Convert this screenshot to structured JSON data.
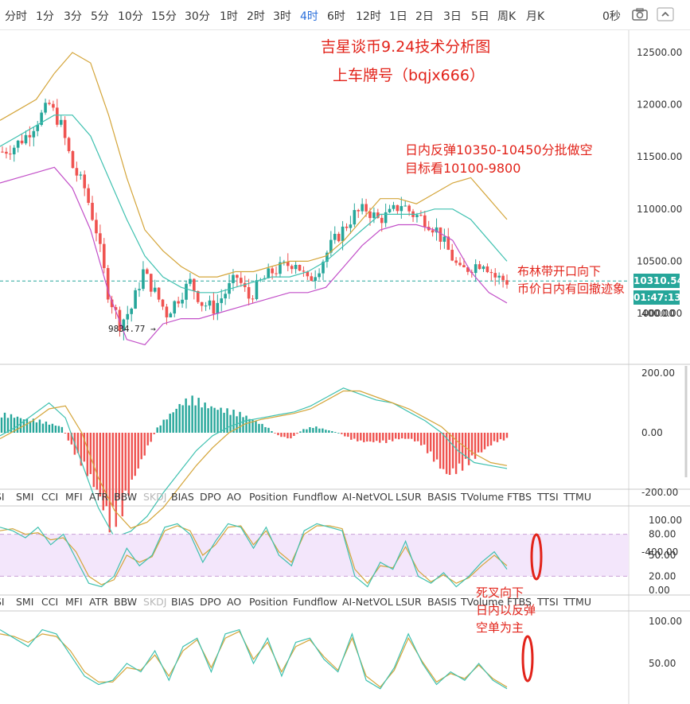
{
  "toolbar": {
    "timeframes": [
      "分时",
      "1分",
      "3分",
      "5分",
      "10分",
      "15分",
      "30分",
      "1时",
      "2时",
      "3时",
      "4时",
      "6时",
      "12时",
      "1日",
      "2日",
      "3日",
      "5日",
      "周K",
      "月K"
    ],
    "active_timeframe": "4时",
    "refresh": "0秒",
    "icons": [
      "camera-icon",
      "fullscreen-icon"
    ]
  },
  "annotations": {
    "title": "吉星谈币9.24技术分析图",
    "plate": "上车牌号（bqjx666）",
    "short_plan_1": "日内反弹10350-10450分批做空",
    "short_plan_2": "目标看10100-9800",
    "boll_1": "布林带开口向下",
    "boll_2": "币价日内有回撤迹象",
    "kdj_1": "死叉向下",
    "kdj_2": "日内以反弹",
    "kdj_3": "空单为主"
  },
  "price_tag": "10310.54",
  "time_tag": "01:47:13",
  "low_label": "9834.77",
  "indicator_tabs_1": [
    "SI",
    "SMI",
    "CCI",
    "MFI",
    "ATR",
    "BBW",
    "SKDJ",
    "BIAS",
    "DPO",
    "AO",
    "Position",
    "Fundflow",
    "AI-NetVOL",
    "LSUR",
    "BASIS",
    "TVolume",
    "FTBS",
    "TTSI",
    "TTMU"
  ],
  "indicator_tabs_2": [
    "SI",
    "SMI",
    "CCI",
    "MFI",
    "ATR",
    "BBW",
    "SKDJ",
    "BIAS",
    "DPO",
    "AO",
    "Position",
    "Fundflow",
    "AI-NetVOL",
    "LSUR",
    "BASIS",
    "TVolume",
    "FTBS",
    "TTSI",
    "TTMU"
  ],
  "colors": {
    "up": "#26a69a",
    "down": "#ef5350",
    "boll_upper": "#d4a53a",
    "boll_mid": "#3fc1b0",
    "boll_lower": "#c24fc8",
    "macd_dif": "#3fc1b0",
    "macd_dea": "#d4a53a",
    "accent": "#2a6fdb",
    "annotation": "#e2231a"
  },
  "chart_data": [
    {
      "type": "candlestick",
      "panel": "price",
      "yaxis_ticks": [
        "12500.00",
        "12000.00",
        "11500.00",
        "11000.00",
        "10500.00",
        "10000.00"
      ],
      "ylim": [
        9650,
        12700
      ],
      "last_price": 10310.54,
      "low_marker": 9834.77,
      "ohlc_path": [
        11550,
        11600,
        11700,
        11850,
        12000,
        11800,
        11400,
        11200,
        10800,
        10200,
        9900,
        10050,
        10400,
        10200,
        10000,
        10150,
        10300,
        10100,
        10050,
        10200,
        10350,
        10150,
        10300,
        10400,
        10450,
        10500,
        10300,
        10450,
        10650,
        10800,
        10950,
        11000,
        10900,
        10950,
        11050,
        10950,
        10900,
        10800,
        10600,
        10400,
        10450,
        10500,
        10350,
        10310
      ],
      "bollinger": {
        "upper": [
          11850,
          11950,
          12050,
          12300,
          12500,
          12400,
          11900,
          11300,
          10800,
          10600,
          10450,
          10350,
          10350,
          10400,
          10400,
          10450,
          10500,
          10500,
          10550,
          10700,
          10900,
          11100,
          11100,
          11050,
          11150,
          11250,
          11300,
          11100,
          10900
        ],
        "mid": [
          11600,
          11700,
          11800,
          11900,
          11900,
          11700,
          11300,
          10900,
          10550,
          10350,
          10250,
          10200,
          10200,
          10250,
          10300,
          10350,
          10350,
          10400,
          10500,
          10650,
          10800,
          10950,
          10950,
          10950,
          11000,
          11000,
          10900,
          10700,
          10500
        ],
        "lower": [
          11250,
          11300,
          11350,
          11400,
          11200,
          10800,
          10200,
          9750,
          9700,
          9900,
          9950,
          9950,
          10000,
          10050,
          10100,
          10150,
          10200,
          10200,
          10250,
          10450,
          10650,
          10800,
          10850,
          10850,
          10800,
          10700,
          10400,
          10200,
          10100
        ]
      }
    },
    {
      "type": "bar",
      "panel": "macd",
      "yaxis_ticks": [
        "400.00",
        "200.00",
        "0.00",
        "-200.00",
        "-400.00"
      ],
      "ylim": [
        -450,
        450
      ],
      "histogram": [
        60,
        55,
        45,
        40,
        30,
        20,
        -60,
        -120,
        -200,
        -300,
        -250,
        -150,
        -60,
        20,
        60,
        100,
        110,
        90,
        80,
        70,
        60,
        40,
        20,
        -10,
        -20,
        10,
        20,
        10,
        0,
        -20,
        -30,
        -30,
        -30,
        -20,
        -20,
        -40,
        -90,
        -140,
        -120,
        -90,
        -60,
        -30,
        -20
      ],
      "dif": [
        -10,
        20,
        60,
        100,
        50,
        -100,
        -250,
        -350,
        -330,
        -280,
        -200,
        -130,
        -60,
        -10,
        20,
        40,
        50,
        60,
        70,
        90,
        120,
        150,
        130,
        110,
        100,
        70,
        40,
        0,
        -60,
        -100,
        -110,
        -120
      ],
      "dea": [
        -20,
        10,
        40,
        80,
        90,
        0,
        -150,
        -260,
        -320,
        -300,
        -250,
        -180,
        -110,
        -50,
        0,
        30,
        45,
        55,
        65,
        80,
        110,
        140,
        140,
        120,
        100,
        80,
        50,
        20,
        -30,
        -70,
        -100,
        -110
      ]
    },
    {
      "type": "line",
      "panel": "kdj_1",
      "yaxis_ticks": [
        "100.00",
        "80.00",
        "50.00",
        "20.00",
        "0.00"
      ],
      "ylim": [
        -5,
        110
      ],
      "band": [
        20,
        80
      ],
      "k": [
        90,
        85,
        75,
        90,
        65,
        80,
        45,
        10,
        5,
        20,
        60,
        35,
        50,
        90,
        95,
        80,
        40,
        70,
        95,
        90,
        60,
        90,
        50,
        35,
        85,
        95,
        90,
        85,
        20,
        5,
        40,
        30,
        70,
        20,
        10,
        25,
        5,
        20,
        40,
        55,
        30
      ],
      "d": [
        85,
        88,
        80,
        82,
        72,
        75,
        55,
        20,
        8,
        15,
        50,
        40,
        48,
        85,
        92,
        85,
        50,
        65,
        90,
        92,
        65,
        85,
        55,
        40,
        80,
        92,
        92,
        88,
        30,
        10,
        35,
        32,
        62,
        28,
        12,
        22,
        10,
        18,
        35,
        50,
        35
      ]
    },
    {
      "type": "line",
      "panel": "kdj_2",
      "yaxis_ticks": [
        "100.00",
        "50.00"
      ],
      "ylim": [
        10,
        110
      ],
      "k": [
        90,
        80,
        70,
        90,
        85,
        60,
        35,
        25,
        30,
        50,
        40,
        65,
        30,
        70,
        80,
        40,
        85,
        90,
        50,
        80,
        35,
        75,
        80,
        55,
        40,
        85,
        30,
        20,
        45,
        85,
        50,
        25,
        40,
        30,
        50,
        30,
        20
      ],
      "d": [
        85,
        82,
        75,
        85,
        82,
        65,
        40,
        28,
        28,
        45,
        42,
        60,
        35,
        65,
        78,
        45,
        80,
        88,
        55,
        75,
        40,
        70,
        78,
        58,
        42,
        80,
        35,
        22,
        42,
        80,
        52,
        28,
        38,
        32,
        48,
        32,
        22
      ]
    }
  ]
}
